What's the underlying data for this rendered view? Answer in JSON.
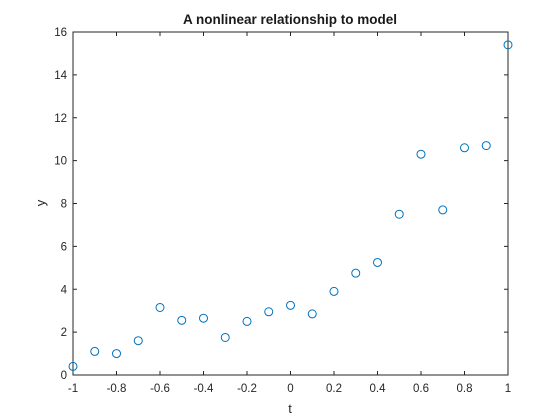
{
  "chart_data": {
    "type": "scatter",
    "title": "A nonlinear relationship to model",
    "xlabel": "t",
    "ylabel": "y",
    "xlim": [
      -1,
      1
    ],
    "ylim": [
      0,
      16
    ],
    "grid": false,
    "legend": "none",
    "xticks": [
      "-1",
      "-0.8",
      "-0.6",
      "-0.4",
      "-0.2",
      "0",
      "0.2",
      "0.4",
      "0.6",
      "0.8",
      "1"
    ],
    "yticks": [
      "0",
      "2",
      "4",
      "6",
      "8",
      "10",
      "12",
      "14",
      "16"
    ],
    "marker_color": "#0072BD",
    "marker": "circle-open",
    "series": [
      {
        "x": [
          -1,
          -0.9,
          -0.8,
          -0.7,
          -0.6,
          -0.5,
          -0.4,
          -0.3,
          -0.2,
          -0.1,
          0,
          0.1,
          0.2,
          0.3,
          0.4,
          0.5,
          0.6,
          0.7,
          0.8,
          0.9,
          1
        ],
        "values": [
          0.4,
          1.1,
          1.0,
          1.6,
          3.15,
          2.55,
          2.65,
          1.75,
          2.5,
          2.95,
          3.25,
          2.85,
          3.9,
          4.75,
          5.25,
          7.5,
          10.3,
          7.7,
          10.6,
          10.7,
          15.4
        ]
      }
    ]
  }
}
